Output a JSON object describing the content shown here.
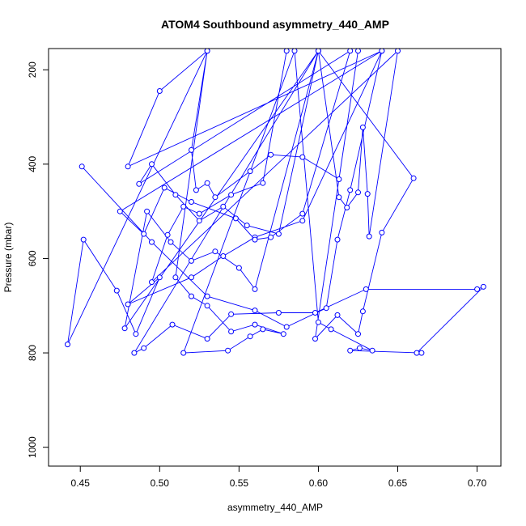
{
  "chart_data": {
    "type": "line",
    "title": "ATOM4 Southbound asymmetry_440_AMP",
    "xlabel": "asymmetry_440_AMP",
    "ylabel": "Pressure (mbar)",
    "xlim": [
      0.43,
      0.715
    ],
    "ylim": [
      1040,
      155
    ],
    "y_reversed": true,
    "x_ticks": [
      0.45,
      0.5,
      0.55,
      0.6,
      0.65,
      0.7
    ],
    "x_tick_labels": [
      "0.45",
      "0.50",
      "0.55",
      "0.60",
      "0.65",
      "0.70"
    ],
    "y_ticks": [
      200,
      400,
      600,
      800,
      1000
    ],
    "y_tick_labels": [
      "200",
      "400",
      "600",
      "800",
      "1000"
    ],
    "grid": false,
    "legend": "none",
    "color": "#0000ff",
    "marker": "open-circle",
    "series": [
      {
        "values": [
          [
            0.451,
            405
          ],
          [
            0.495,
            565
          ],
          [
            0.53,
            680
          ],
          [
            0.56,
            710
          ],
          [
            0.58,
            745
          ],
          [
            0.605,
            705
          ],
          [
            0.612,
            560
          ],
          [
            0.62,
            455
          ],
          [
            0.64,
            160
          ],
          [
            0.48,
            405
          ],
          [
            0.5,
            245
          ],
          [
            0.53,
            160
          ],
          [
            0.442,
            782
          ],
          [
            0.452,
            560
          ],
          [
            0.473,
            668
          ],
          [
            0.485,
            760
          ],
          [
            0.5,
            640
          ],
          [
            0.48,
            697
          ],
          [
            0.52,
            640
          ],
          [
            0.54,
            595
          ],
          [
            0.56,
            555
          ],
          [
            0.59,
            520
          ],
          [
            0.64,
            160
          ],
          [
            0.475,
            500
          ],
          [
            0.49,
            548
          ],
          [
            0.503,
            450
          ],
          [
            0.52,
            480
          ],
          [
            0.548,
            515
          ],
          [
            0.56,
            560
          ],
          [
            0.57,
            555
          ],
          [
            0.59,
            505
          ],
          [
            0.62,
            160
          ],
          [
            0.487,
            442
          ],
          [
            0.495,
            400
          ],
          [
            0.51,
            465
          ],
          [
            0.525,
            520
          ],
          [
            0.54,
            490
          ],
          [
            0.555,
            530
          ],
          [
            0.575,
            548
          ],
          [
            0.6,
            160
          ],
          [
            0.478,
            748
          ],
          [
            0.492,
            500
          ],
          [
            0.507,
            565
          ],
          [
            0.52,
            605
          ],
          [
            0.535,
            585
          ],
          [
            0.55,
            620
          ],
          [
            0.56,
            665
          ],
          [
            0.6,
            160
          ],
          [
            0.484,
            800
          ],
          [
            0.49,
            790
          ],
          [
            0.508,
            740
          ],
          [
            0.53,
            770
          ],
          [
            0.545,
            718
          ],
          [
            0.575,
            715
          ],
          [
            0.598,
            715
          ],
          [
            0.63,
            665
          ],
          [
            0.7,
            665
          ],
          [
            0.704,
            660
          ],
          [
            0.662,
            800
          ],
          [
            0.665,
            800
          ],
          [
            0.62,
            795
          ],
          [
            0.626,
            790
          ],
          [
            0.634,
            795
          ],
          [
            0.608,
            750
          ],
          [
            0.6,
            735
          ],
          [
            0.585,
            160
          ],
          [
            0.515,
            800
          ],
          [
            0.543,
            795
          ],
          [
            0.557,
            765
          ],
          [
            0.565,
            750
          ],
          [
            0.578,
            760
          ],
          [
            0.56,
            740
          ],
          [
            0.545,
            755
          ],
          [
            0.53,
            700
          ],
          [
            0.52,
            680
          ],
          [
            0.51,
            640
          ],
          [
            0.53,
            160
          ],
          [
            0.52,
            370
          ],
          [
            0.523,
            455
          ],
          [
            0.53,
            440
          ],
          [
            0.535,
            470
          ],
          [
            0.557,
            415
          ],
          [
            0.57,
            380
          ],
          [
            0.59,
            385
          ],
          [
            0.613,
            432
          ],
          [
            0.625,
            160
          ],
          [
            0.598,
            770
          ],
          [
            0.612,
            720
          ],
          [
            0.625,
            760
          ],
          [
            0.628,
            712
          ],
          [
            0.64,
            545
          ],
          [
            0.66,
            430
          ],
          [
            0.6,
            160
          ],
          [
            0.613,
            470
          ],
          [
            0.618,
            492
          ],
          [
            0.625,
            460
          ],
          [
            0.628,
            322
          ],
          [
            0.631,
            463
          ],
          [
            0.632,
            553
          ],
          [
            0.65,
            160
          ],
          [
            0.495,
            650
          ],
          [
            0.505,
            550
          ],
          [
            0.515,
            490
          ],
          [
            0.525,
            505
          ],
          [
            0.545,
            465
          ],
          [
            0.565,
            440
          ],
          [
            0.58,
            160
          ]
        ]
      }
    ]
  }
}
